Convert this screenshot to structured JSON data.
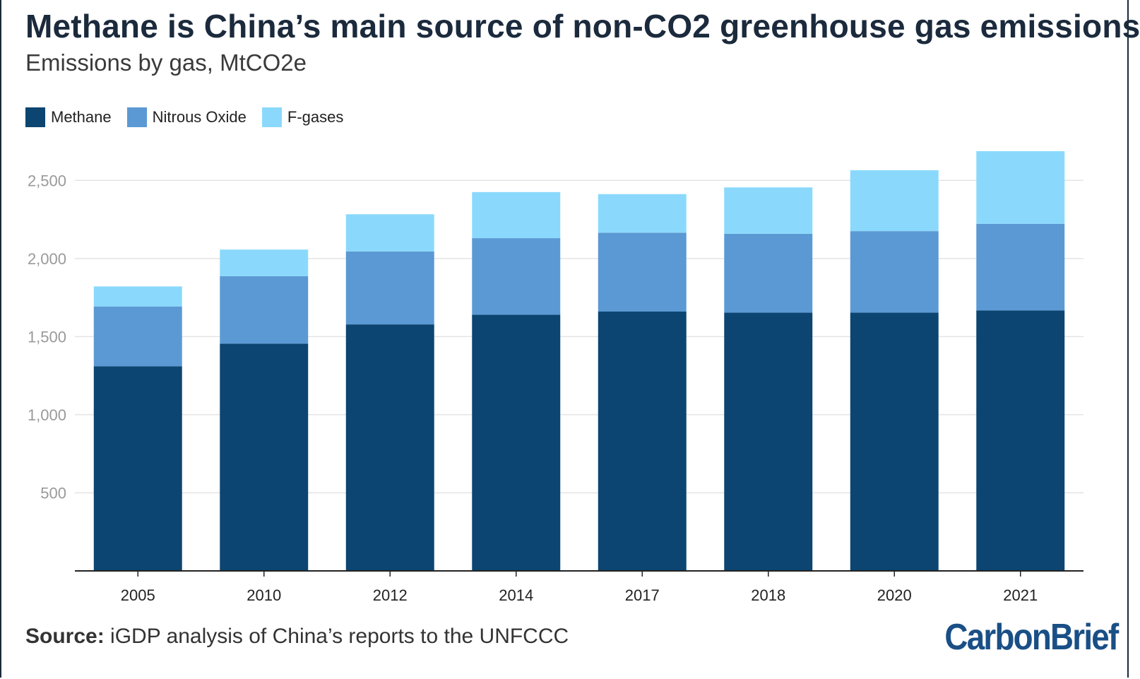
{
  "title": "Methane is China’s main source of non-CO2 greenhouse gas emissions",
  "subtitle": "Emissions by gas, MtCO2e",
  "legend": [
    {
      "label": "Methane",
      "color": "#0c4571"
    },
    {
      "label": "Nitrous Oxide",
      "color": "#5b99d4"
    },
    {
      "label": "F-gases",
      "color": "#8ad9fc"
    }
  ],
  "source": {
    "label": "Source:",
    "text": "iGDP analysis of China’s reports to the UNFCCC"
  },
  "logo": {
    "name": "CarbonBrief",
    "text": "CarbonBrief"
  },
  "colors": {
    "methane": "#0c4571",
    "nitrous": "#5b99d4",
    "fgases": "#8ad9fc",
    "grid": "#e4e4e4",
    "axis": "#222222",
    "tick_label": "#9a9a9a"
  },
  "chart_data": {
    "type": "bar",
    "stacked": true,
    "categories": [
      "2005",
      "2010",
      "2012",
      "2014",
      "2017",
      "2018",
      "2020",
      "2021"
    ],
    "series": [
      {
        "name": "Methane",
        "values": [
          1310,
          1455,
          1578,
          1640,
          1660,
          1653,
          1653,
          1667
        ]
      },
      {
        "name": "Nitrous Oxide",
        "values": [
          383,
          432,
          467,
          490,
          505,
          505,
          522,
          555
        ]
      },
      {
        "name": "F-gases",
        "values": [
          128,
          170,
          238,
          295,
          247,
          297,
          390,
          465
        ]
      }
    ],
    "ylim": [
      0,
      2750
    ],
    "yticks": [
      500,
      1000,
      1500,
      2000,
      2500
    ],
    "ytick_labels": [
      "500",
      "1,000",
      "1,500",
      "2,000",
      "2,500"
    ],
    "grid": true,
    "legend_position": "top-left"
  }
}
